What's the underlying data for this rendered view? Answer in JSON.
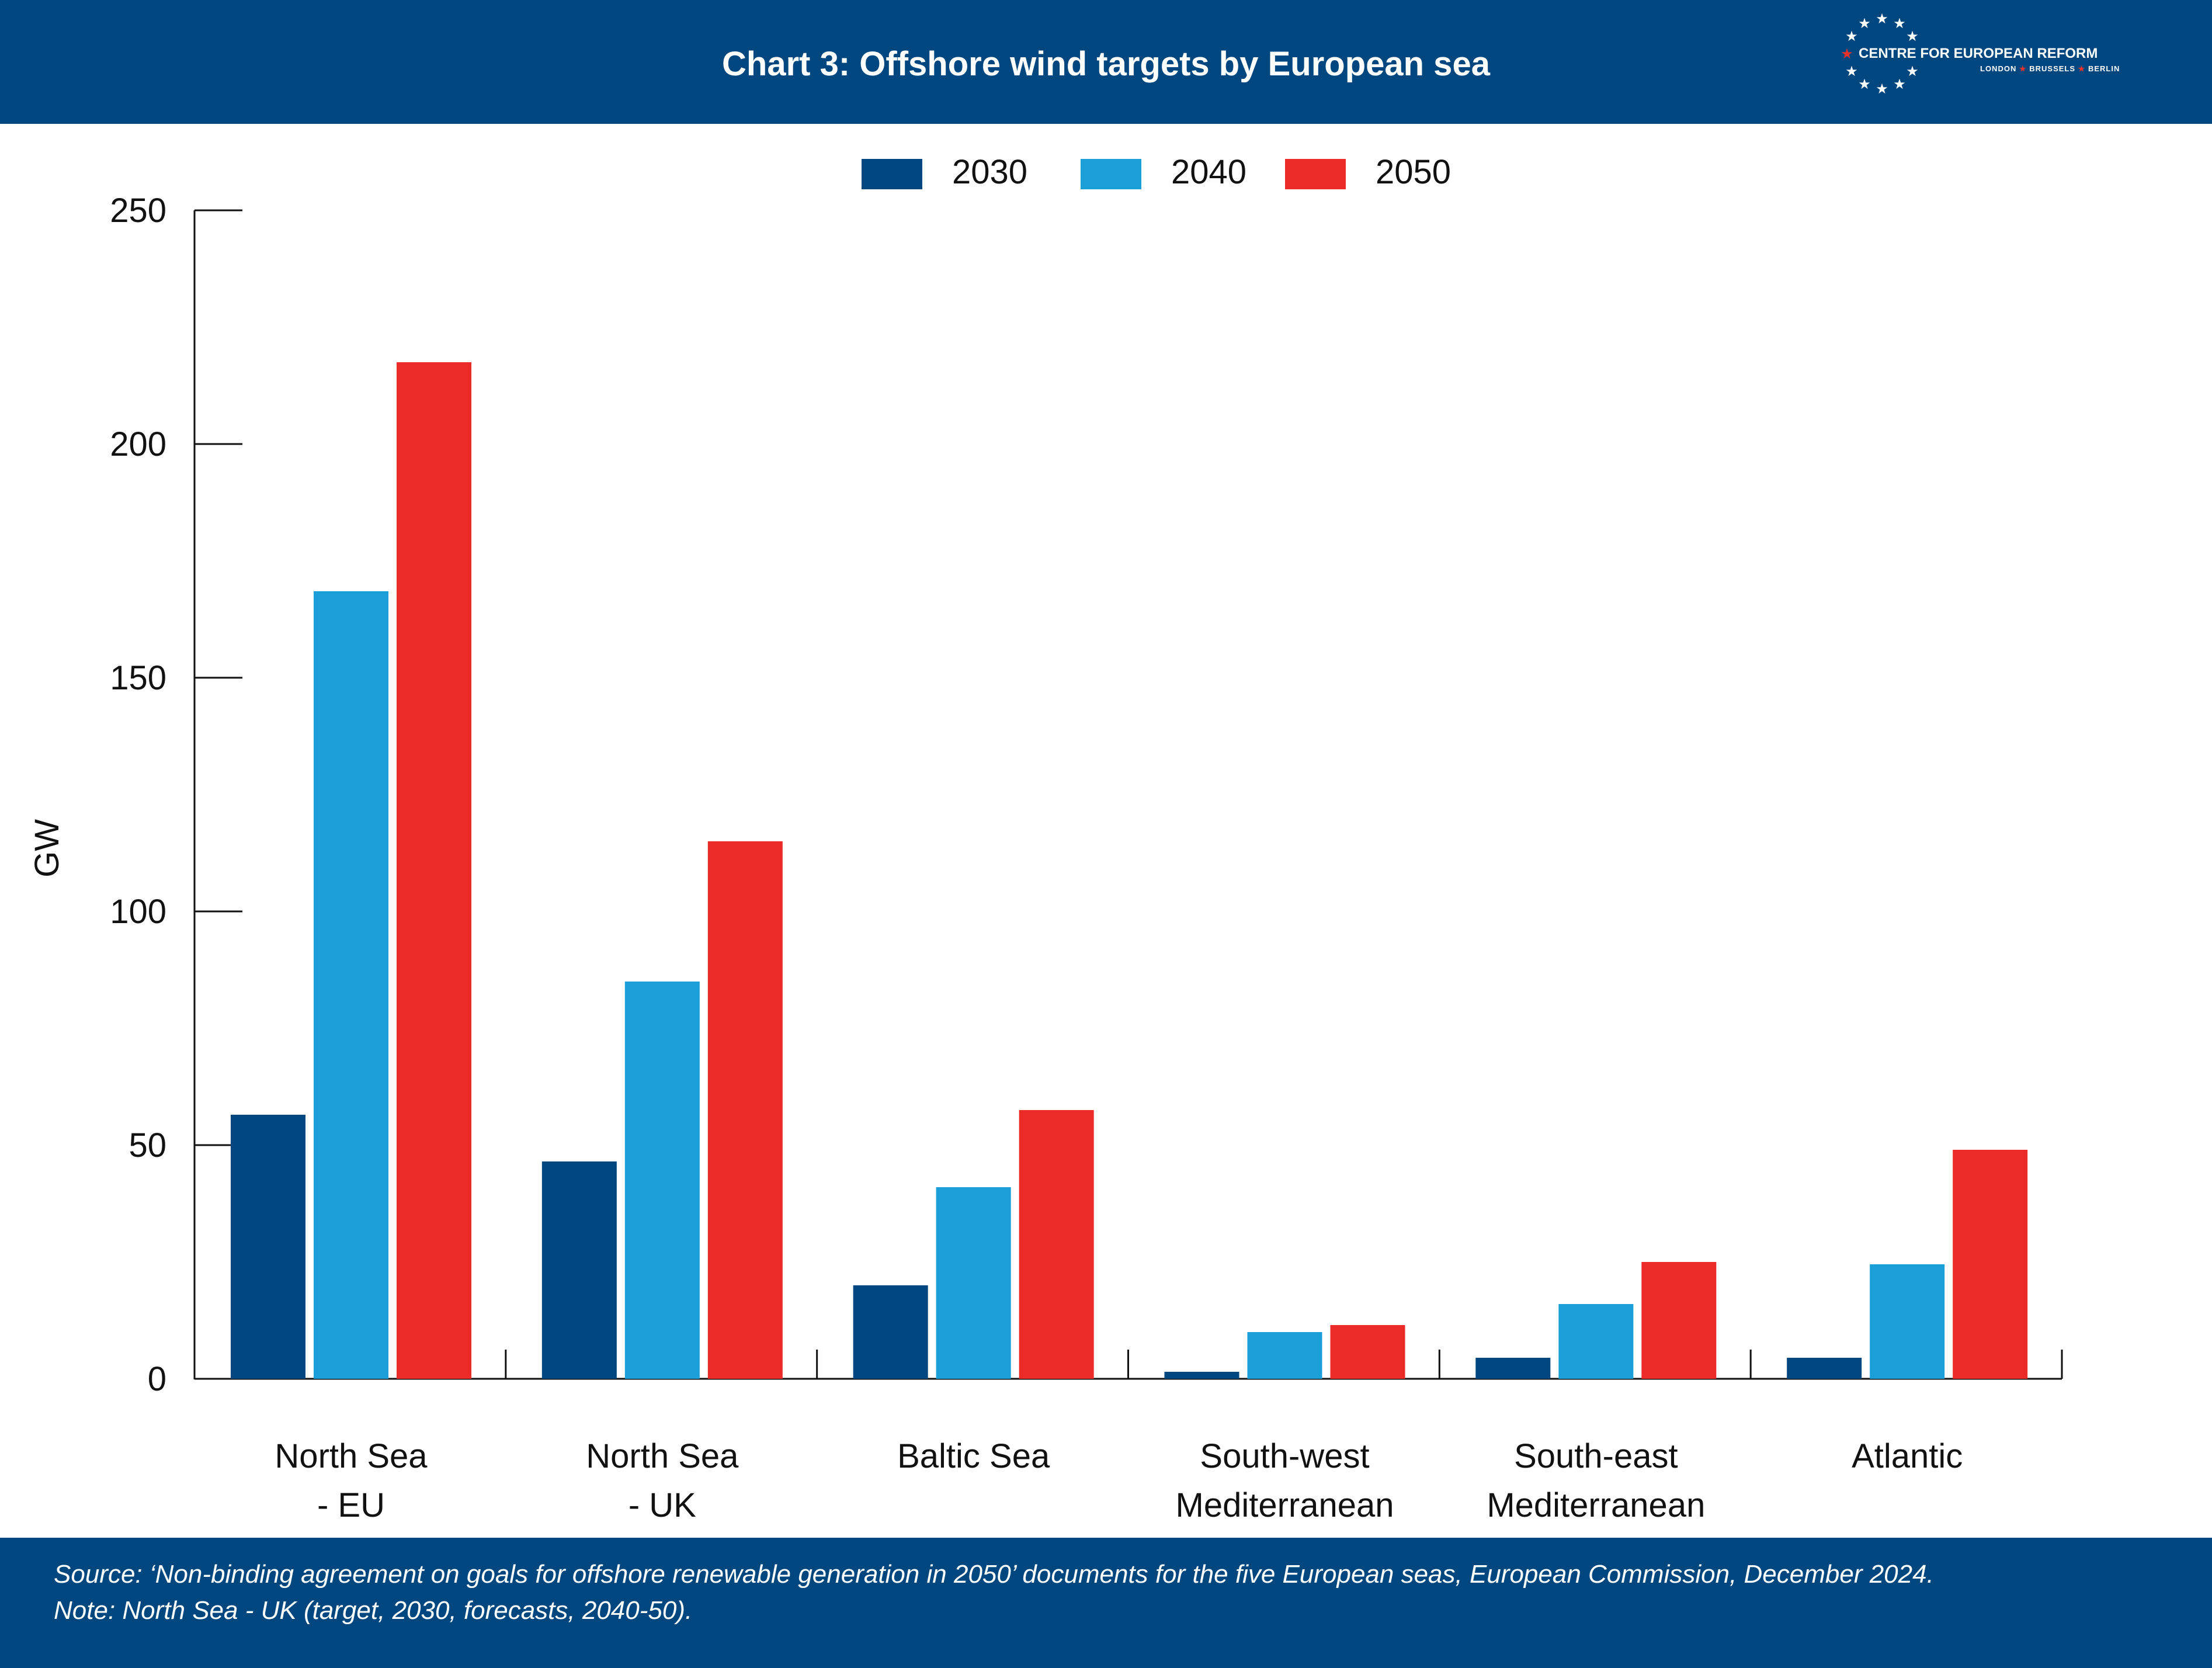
{
  "header": {
    "title": "Chart 3: Offshore wind targets by European sea",
    "logo_org": "CENTRE FOR EUROPEAN REFORM",
    "logo_cities": [
      "LONDON",
      "BRUSSELS",
      "BERLIN"
    ]
  },
  "footer": {
    "source": "Source: ‘Non-binding agreement on goals for offshore renewable generation in 2050’ documents for the five European seas, European Commission, December 2024.",
    "note": "Note: North Sea - UK (target, 2030, forecasts, 2040-50)."
  },
  "colors": {
    "header_bg": "#004780",
    "s2030": "#004780",
    "s2040": "#1a9fd8",
    "s2050": "#ea2b27"
  },
  "chart_data": {
    "type": "bar",
    "title": "Chart 3: Offshore wind targets by European sea",
    "xlabel": "",
    "ylabel": "GW",
    "ylim": [
      0,
      250
    ],
    "yticks": [
      0,
      50,
      100,
      150,
      200,
      250
    ],
    "grid": false,
    "legend_position": "top-center",
    "categories": [
      [
        "North Sea",
        "-    EU"
      ],
      [
        "North Sea",
        "-    UK"
      ],
      [
        "Baltic Sea"
      ],
      [
        "South-west",
        "Mediterranean"
      ],
      [
        "South-east",
        "Mediterranean"
      ],
      [
        "Atlantic"
      ]
    ],
    "series": [
      {
        "name": "2030",
        "color": "#004780",
        "values": [
          56.5,
          46.5,
          20,
          1.5,
          4.5,
          4.5
        ]
      },
      {
        "name": "2040",
        "color": "#1a9fd8",
        "values": [
          168.5,
          85,
          41,
          10,
          16,
          24.5
        ]
      },
      {
        "name": "2050",
        "color": "#ea2b27",
        "values": [
          217.5,
          115,
          57.5,
          11.5,
          25,
          49
        ]
      }
    ]
  }
}
